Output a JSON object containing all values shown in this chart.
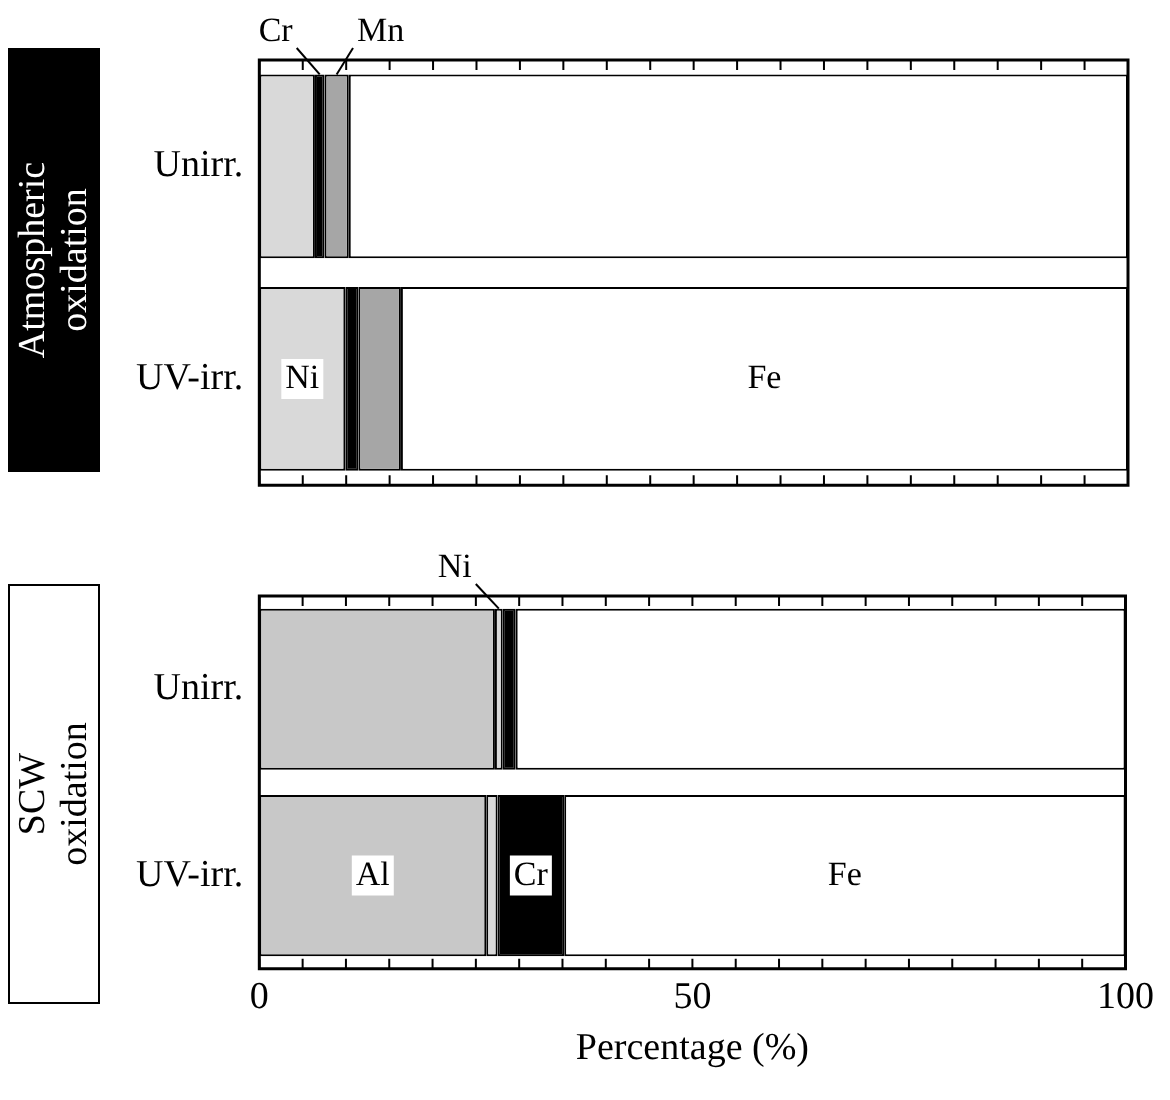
{
  "chart_data": [
    {
      "type": "bar",
      "orientation": "horizontal",
      "stacked": true,
      "title": "Atmospheric oxidation",
      "categories": [
        "Unirr.",
        "UV-irr."
      ],
      "series": [
        {
          "name": "Ni",
          "color": "#d9d9d9",
          "values": [
            6.4,
            9.9
          ]
        },
        {
          "name": "Cr",
          "color": "#000000",
          "values": [
            1.1,
            1.5
          ]
        },
        {
          "name": "Mn",
          "color": "#a6a6a6",
          "values": [
            2.8,
            4.9
          ]
        },
        {
          "name": "Fe",
          "color": "#ffffff",
          "values": [
            89.7,
            83.7
          ]
        }
      ],
      "xlim": [
        0,
        100
      ],
      "xticks": [
        0,
        {
          "value": 5,
          "label": null
        },
        {
          "value": 10,
          "label": null
        },
        {
          "value": 15,
          "label": null
        },
        {
          "value": 20,
          "label": null
        },
        {
          "value": 25,
          "label": null
        },
        {
          "value": 30,
          "label": null
        },
        {
          "value": 35,
          "label": null
        },
        {
          "value": 40,
          "label": null
        },
        {
          "value": 45,
          "label": null
        },
        50,
        {
          "value": 55,
          "label": null
        },
        {
          "value": 60,
          "label": null
        },
        {
          "value": 65,
          "label": null
        },
        {
          "value": 70,
          "label": null
        },
        {
          "value": 75,
          "label": null
        },
        {
          "value": 80,
          "label": null
        },
        {
          "value": 85,
          "label": null
        },
        {
          "value": 90,
          "label": null
        },
        {
          "value": 95,
          "label": null
        },
        100
      ],
      "tick_labels": "y",
      "legend": false,
      "grid": false
    },
    {
      "type": "bar",
      "orientation": "horizontal",
      "stacked": true,
      "title": "SCW oxidation",
      "xlabel": "Percentage (%)",
      "categories": [
        "Unirr.",
        "UV-irr."
      ],
      "series": [
        {
          "name": "Al",
          "color": "#c8c8c8",
          "values": [
            27.2,
            26.2
          ]
        },
        {
          "name": "Ni",
          "color": "#d9d9d9",
          "values": [
            0.9,
            1.3
          ]
        },
        {
          "name": "Cr",
          "color": "#000000",
          "values": [
            1.5,
            7.7
          ]
        },
        {
          "name": "Fe",
          "color": "#ffffff",
          "values": [
            70.4,
            64.8
          ]
        }
      ],
      "xlim": [
        0,
        100
      ],
      "xticks": [
        0,
        {
          "value": 5,
          "label": null
        },
        {
          "value": 10,
          "label": null
        },
        {
          "value": 15,
          "label": null
        },
        {
          "value": 20,
          "label": null
        },
        {
          "value": 25,
          "label": null
        },
        {
          "value": 30,
          "label": null
        },
        {
          "value": 35,
          "label": null
        },
        {
          "value": 40,
          "label": null
        },
        {
          "value": 45,
          "label": null
        },
        50,
        {
          "value": 55,
          "label": null
        },
        {
          "value": 60,
          "label": null
        },
        {
          "value": 65,
          "label": null
        },
        {
          "value": 70,
          "label": null
        },
        {
          "value": 75,
          "label": null
        },
        {
          "value": 80,
          "label": null
        },
        {
          "value": 85,
          "label": null
        },
        {
          "value": 90,
          "label": null
        },
        {
          "value": 95,
          "label": null
        },
        100
      ],
      "legend": false,
      "grid": false
    }
  ]
}
